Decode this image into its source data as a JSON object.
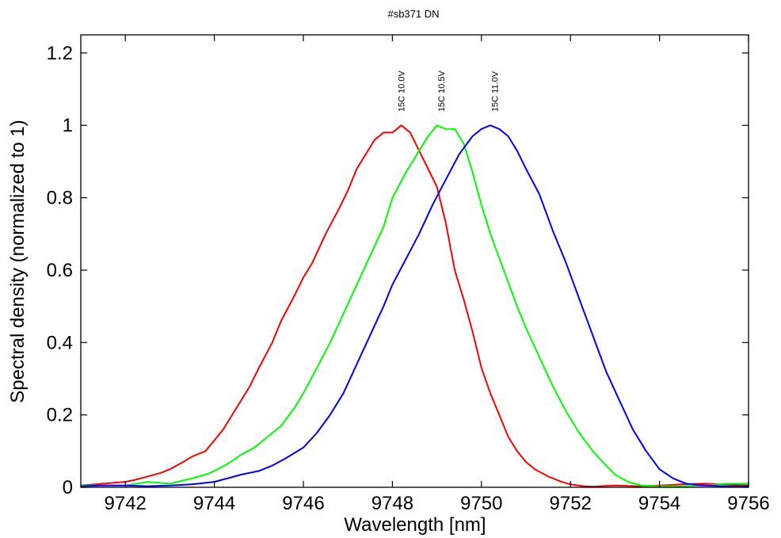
{
  "chart_data": {
    "type": "line",
    "title": "#sb371 DN",
    "xlabel": "Wavelength [nm]",
    "ylabel": "Spectral density (normalized to 1)",
    "xlim": [
      9741,
      9756
    ],
    "ylim": [
      0,
      1.25
    ],
    "x_ticks": [
      9742,
      9744,
      9746,
      9748,
      9750,
      9752,
      9754,
      9756
    ],
    "x_tick_labels": [
      "9742",
      "9744",
      "9746",
      "9748",
      "9750",
      "9752",
      "9754",
      "9756"
    ],
    "y_ticks": [
      0,
      0.2,
      0.4,
      0.6,
      0.8,
      1,
      1.2
    ],
    "y_tick_labels": [
      "0",
      "0.2",
      "0.4",
      "0.6",
      "0.8",
      "1",
      "1.2"
    ],
    "grid": false,
    "annotations": [
      {
        "text": "15C 10.0V",
        "x": 9748.2,
        "y": 1.02
      },
      {
        "text": "15C 10.5V",
        "x": 9749.1,
        "y": 1.02
      },
      {
        "text": "15C 11.0V",
        "x": 9750.3,
        "y": 1.02
      }
    ],
    "series": [
      {
        "color": "#ff0000",
        "x": [
          9741.0,
          9741.5,
          9742.0,
          9742.2,
          9742.5,
          9742.8,
          9743.0,
          9743.3,
          9743.5,
          9743.8,
          9744.0,
          9744.2,
          9744.5,
          9744.8,
          9745.0,
          9745.3,
          9745.5,
          9745.8,
          9746.0,
          9746.2,
          9746.5,
          9746.8,
          9747.0,
          9747.2,
          9747.4,
          9747.6,
          9747.8,
          9748.0,
          9748.2,
          9748.4,
          9748.6,
          9748.8,
          9749.0,
          9749.2,
          9749.4,
          9749.6,
          9749.8,
          9750.0,
          9750.2,
          9750.4,
          9750.6,
          9750.8,
          9751.0,
          9751.2,
          9751.5,
          9751.8,
          9752.0,
          9752.3,
          9752.5,
          9753.0,
          9753.5,
          9754.0,
          9754.5,
          9755.0,
          9755.5,
          9756.0
        ],
        "y": [
          0.005,
          0.01,
          0.015,
          0.02,
          0.03,
          0.04,
          0.05,
          0.07,
          0.085,
          0.1,
          0.13,
          0.16,
          0.22,
          0.28,
          0.33,
          0.4,
          0.46,
          0.53,
          0.58,
          0.62,
          0.7,
          0.77,
          0.82,
          0.88,
          0.92,
          0.96,
          0.98,
          0.98,
          1.0,
          0.98,
          0.93,
          0.88,
          0.83,
          0.73,
          0.6,
          0.52,
          0.43,
          0.33,
          0.26,
          0.2,
          0.14,
          0.1,
          0.07,
          0.05,
          0.03,
          0.015,
          0.008,
          0.003,
          0.002,
          0.005,
          0.003,
          0.005,
          0.008,
          0.01,
          0.008,
          0.005
        ]
      },
      {
        "color": "#00ff00",
        "x": [
          9741.0,
          9741.5,
          9742.0,
          9742.5,
          9742.8,
          9743.0,
          9743.5,
          9743.8,
          9744.0,
          9744.3,
          9744.6,
          9744.9,
          9745.2,
          9745.5,
          9745.8,
          9746.0,
          9746.3,
          9746.6,
          9746.9,
          9747.2,
          9747.5,
          9747.8,
          9748.0,
          9748.3,
          9748.6,
          9748.8,
          9749.0,
          9749.2,
          9749.4,
          9749.6,
          9749.8,
          9750.0,
          9750.2,
          9750.5,
          9750.8,
          9751.0,
          9751.3,
          9751.6,
          9751.9,
          9752.2,
          9752.5,
          9752.8,
          9753.0,
          9753.3,
          9753.6,
          9754.0,
          9754.5,
          9755.0,
          9755.5,
          9756.0
        ],
        "y": [
          0.005,
          0.005,
          0.005,
          0.015,
          0.012,
          0.01,
          0.025,
          0.035,
          0.045,
          0.065,
          0.09,
          0.11,
          0.14,
          0.17,
          0.22,
          0.26,
          0.33,
          0.4,
          0.48,
          0.56,
          0.64,
          0.72,
          0.8,
          0.87,
          0.93,
          0.97,
          1.0,
          0.99,
          0.99,
          0.95,
          0.87,
          0.78,
          0.7,
          0.6,
          0.5,
          0.44,
          0.36,
          0.28,
          0.21,
          0.15,
          0.1,
          0.06,
          0.035,
          0.015,
          0.005,
          0.003,
          0.003,
          0.005,
          0.01,
          0.01
        ]
      },
      {
        "color": "#0000ff",
        "x": [
          9741.0,
          9741.5,
          9742.0,
          9742.5,
          9743.0,
          9743.5,
          9744.0,
          9744.3,
          9744.6,
          9745.0,
          9745.3,
          9745.6,
          9746.0,
          9746.3,
          9746.6,
          9746.9,
          9747.2,
          9747.5,
          9747.8,
          9748.0,
          9748.3,
          9748.6,
          9748.9,
          9749.2,
          9749.5,
          9749.8,
          9750.0,
          9750.2,
          9750.4,
          9750.6,
          9750.8,
          9751.0,
          9751.3,
          9751.6,
          9751.9,
          9752.2,
          9752.5,
          9752.8,
          9753.1,
          9753.4,
          9753.7,
          9754.0,
          9754.3,
          9754.6,
          9755.0,
          9755.5,
          9756.0
        ],
        "y": [
          0.003,
          0.005,
          0.005,
          0.003,
          0.005,
          0.008,
          0.015,
          0.025,
          0.035,
          0.045,
          0.06,
          0.08,
          0.11,
          0.15,
          0.2,
          0.26,
          0.34,
          0.42,
          0.5,
          0.56,
          0.63,
          0.7,
          0.78,
          0.85,
          0.92,
          0.97,
          0.99,
          1.0,
          0.99,
          0.97,
          0.93,
          0.88,
          0.81,
          0.71,
          0.62,
          0.52,
          0.42,
          0.32,
          0.24,
          0.16,
          0.1,
          0.05,
          0.025,
          0.01,
          0.005,
          0.003,
          0.003
        ]
      }
    ]
  }
}
